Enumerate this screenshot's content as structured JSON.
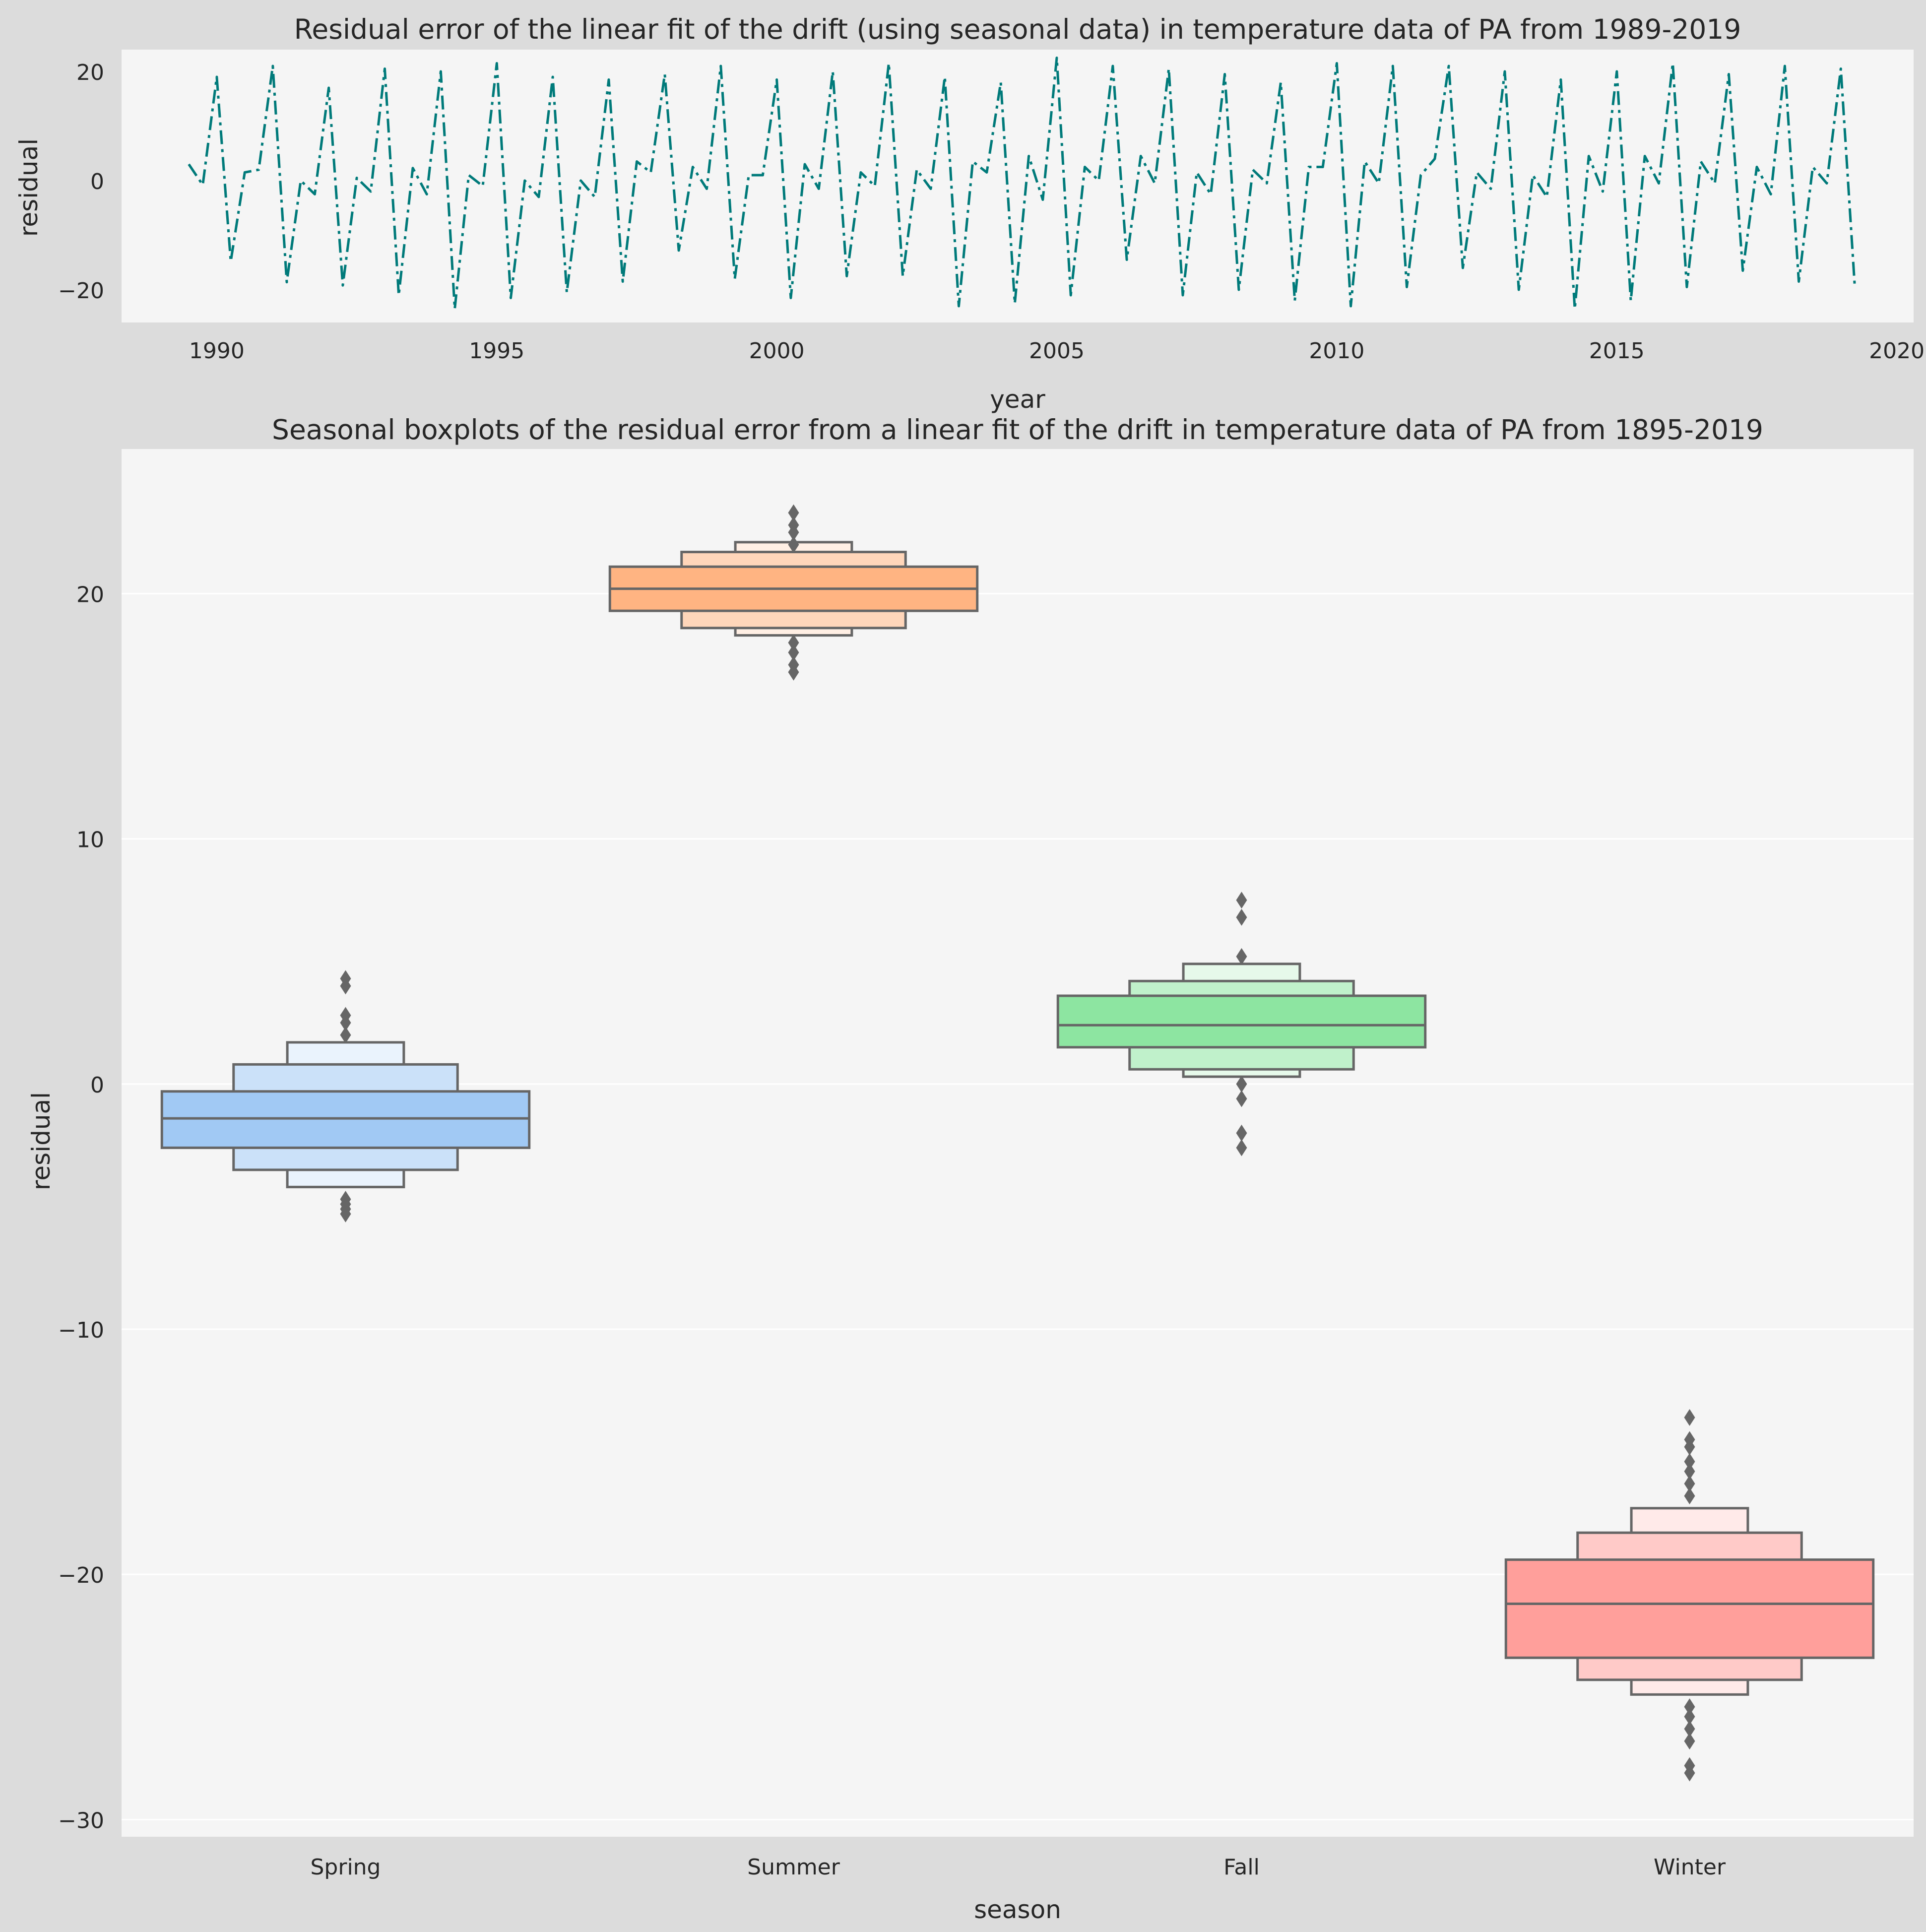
{
  "figure": {
    "background": "#dcdcdc",
    "axes_background": "#f5f5f5",
    "grid_color": "#ffffff"
  },
  "chart_data": [
    {
      "type": "line",
      "title": "Residual error of the linear fit of the drift (using seasonal data) in temperature data of PA from 1989-2019",
      "xlabel": "year",
      "ylabel": "residual",
      "xlim": [
        1988.3,
        2020.3
      ],
      "ylim": [
        -26,
        24
      ],
      "xticks": [
        1990,
        1995,
        2000,
        2005,
        2010,
        2015,
        2020
      ],
      "yticks": [
        -20,
        0,
        20
      ],
      "grid": false,
      "line_color": "#007a7a",
      "line_style": "dash-dot",
      "x_start": 1989.5,
      "x_step": 0.25,
      "series": [
        {
          "values": [
            3.0,
            -0.8,
            19.0,
            -14.8,
            1.5,
            2.0,
            21.0,
            -18.6,
            0.0,
            -2.5,
            17.0,
            -19.2,
            0.5,
            -2.0,
            20.5,
            -21.0,
            2.3,
            -2.5,
            20.0,
            -23.5,
            1.0,
            -1.0,
            21.5,
            -21.5,
            0.0,
            -3.0,
            19.0,
            -20.5,
            0.0,
            -3.0,
            18.5,
            -18.5,
            3.5,
            1.5,
            19.5,
            -12.8,
            2.5,
            -1.5,
            21.0,
            -18.0,
            1.0,
            1.0,
            18.5,
            -21.5,
            3.0,
            -1.5,
            20.0,
            -17.5,
            1.5,
            -1.0,
            21.5,
            -17.5,
            2.0,
            -1.5,
            19.0,
            -23.0,
            3.5,
            1.5,
            18.0,
            -22.5,
            4.5,
            -3.5,
            22.5,
            -21.0,
            2.5,
            0.0,
            21.0,
            -14.5,
            4.5,
            -0.5,
            20.5,
            -21.0,
            1.5,
            -2.5,
            19.5,
            -20.0,
            2.0,
            -0.5,
            18.0,
            -22.0,
            2.5,
            2.5,
            21.5,
            -23.0,
            3.5,
            -0.5,
            21.0,
            -19.5,
            1.0,
            4.0,
            21.0,
            -16.0,
            1.5,
            -1.5,
            20.0,
            -20.0,
            1.0,
            -3.0,
            18.5,
            -23.5,
            4.5,
            -2.0,
            20.0,
            -22.0,
            4.5,
            -0.5,
            21.5,
            -19.5,
            3.5,
            -0.5,
            19.5,
            -16.5,
            2.5,
            -2.5,
            21.0,
            -18.5,
            2.5,
            -0.5,
            20.5,
            -19.5
          ]
        }
      ]
    },
    {
      "type": "boxplot",
      "title": "Seasonal boxplots of the residual error from a linear fit of the drift in temperature data of PA from 1895-2019",
      "xlabel": "season",
      "ylabel": "residual",
      "ylim": [
        -30.7,
        25.9
      ],
      "yticks": [
        -30,
        -20,
        -10,
        0,
        10,
        20
      ],
      "grid": true,
      "categories": [
        "Spring",
        "Summer",
        "Fall",
        "Winter"
      ],
      "series": [
        {
          "name": "Spring",
          "color": "#a1c9f4",
          "median": -1.4,
          "levels": [
            [
              -2.6,
              -0.3
            ],
            [
              -3.5,
              0.8
            ],
            [
              -4.2,
              1.7
            ]
          ],
          "outliers": [
            4.3,
            4.0,
            2.8,
            2.5,
            2.0,
            -4.7,
            -4.9,
            -5.1,
            -5.3
          ]
        },
        {
          "name": "Summer",
          "color": "#ffb482",
          "median": 20.2,
          "levels": [
            [
              19.3,
              21.1
            ],
            [
              18.6,
              21.7
            ],
            [
              18.3,
              22.1
            ]
          ],
          "outliers": [
            23.3,
            22.8,
            22.5,
            22.0,
            18.0,
            17.6,
            17.1,
            16.8
          ]
        },
        {
          "name": "Fall",
          "color": "#8de5a1",
          "median": 2.4,
          "levels": [
            [
              1.5,
              3.6
            ],
            [
              0.6,
              4.2
            ],
            [
              0.3,
              4.9
            ]
          ],
          "outliers": [
            7.5,
            6.8,
            5.2,
            0.0,
            -0.6,
            -2.0,
            -2.6
          ]
        },
        {
          "name": "Winter",
          "color": "#ff9f9b",
          "median": -21.2,
          "levels": [
            [
              -23.4,
              -19.4
            ],
            [
              -24.3,
              -18.3
            ],
            [
              -24.9,
              -17.3
            ]
          ],
          "outliers": [
            -13.6,
            -14.5,
            -14.8,
            -15.4,
            -15.8,
            -16.3,
            -16.8,
            -25.4,
            -25.8,
            -26.3,
            -26.8,
            -27.8,
            -28.1
          ]
        }
      ]
    }
  ]
}
